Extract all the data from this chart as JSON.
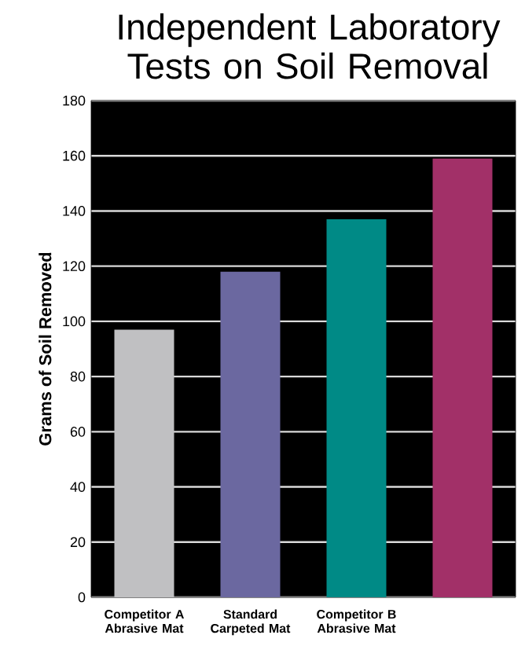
{
  "chart_data": {
    "type": "bar",
    "title": "Independent Laboratory Tests on Soil Removal",
    "ylabel": "Grams of Soil Removed",
    "categories": [
      "Competitor A Abrasive Mat",
      "Standard Carpeted Mat",
      "Competitor B Abrasive Mat",
      null
    ],
    "values": [
      97,
      118,
      137,
      159
    ],
    "colors": [
      "#c0c0c2",
      "#6b68a0",
      "#008a86",
      "#a23068"
    ],
    "ylim": [
      0,
      180
    ],
    "yticks": [
      0,
      20,
      40,
      60,
      80,
      100,
      120,
      140,
      160,
      180
    ],
    "grid": "y"
  }
}
